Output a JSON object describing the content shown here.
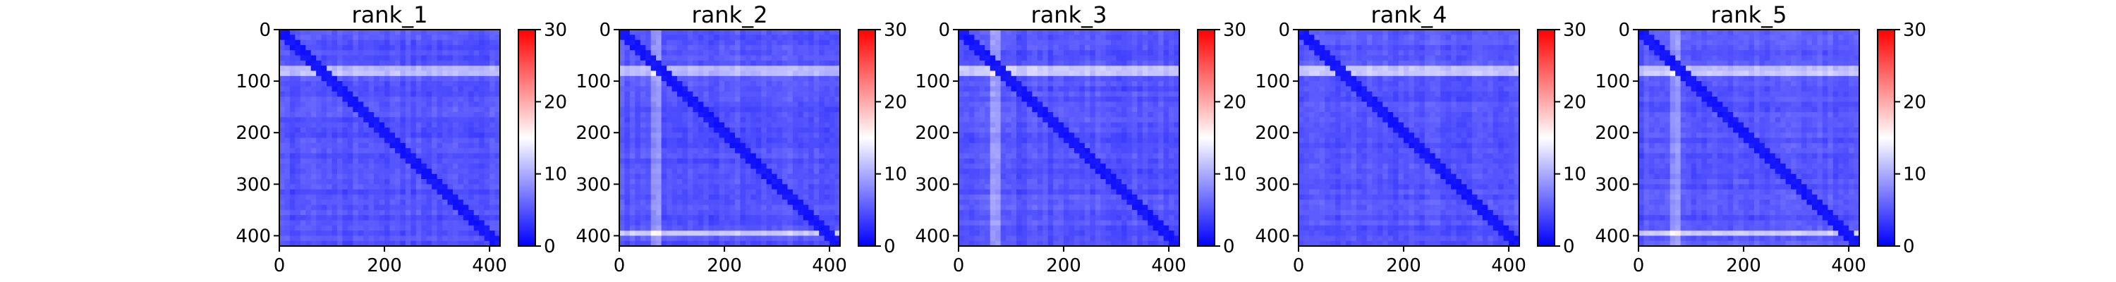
{
  "figure": {
    "background": "#ffffff"
  },
  "chart_data": [
    {
      "type": "heatmap",
      "title": "rank_1",
      "xlabel": "",
      "ylabel": "",
      "xlim": [
        0,
        420
      ],
      "ylim": [
        420,
        0
      ],
      "x_ticks": [
        "0",
        "200",
        "400"
      ],
      "y_ticks": [
        "0",
        "100",
        "200",
        "300",
        "400"
      ],
      "colorbar": {
        "range": [
          0,
          30
        ],
        "ticks": [
          "0",
          "10",
          "20",
          "30"
        ],
        "colormap": "bwr",
        "low_color": "#0000ff",
        "mid_color": "#ffffff",
        "high_color": "#ff0000"
      },
      "bright_rows": [
        78
      ],
      "bright_cols": [],
      "diagonal": "dark"
    },
    {
      "type": "heatmap",
      "title": "rank_2",
      "xlabel": "",
      "ylabel": "",
      "xlim": [
        0,
        420
      ],
      "ylim": [
        420,
        0
      ],
      "x_ticks": [
        "0",
        "200",
        "400"
      ],
      "y_ticks": [
        "0",
        "100",
        "200",
        "300",
        "400"
      ],
      "colorbar": {
        "range": [
          0,
          30
        ],
        "ticks": [
          "0",
          "10",
          "20",
          "30"
        ],
        "colormap": "bwr",
        "low_color": "#0000ff",
        "mid_color": "#ffffff",
        "high_color": "#ff0000"
      },
      "bright_rows": [
        78,
        395
      ],
      "bright_cols": [
        72
      ],
      "diagonal": "dark"
    },
    {
      "type": "heatmap",
      "title": "rank_3",
      "xlabel": "",
      "ylabel": "",
      "xlim": [
        0,
        420
      ],
      "ylim": [
        420,
        0
      ],
      "x_ticks": [
        "0",
        "200",
        "400"
      ],
      "y_ticks": [
        "0",
        "100",
        "200",
        "300",
        "400"
      ],
      "colorbar": {
        "range": [
          0,
          30
        ],
        "ticks": [
          "0",
          "10",
          "20",
          "30"
        ],
        "colormap": "bwr",
        "low_color": "#0000ff",
        "mid_color": "#ffffff",
        "high_color": "#ff0000"
      },
      "bright_rows": [
        78
      ],
      "bright_cols": [
        72
      ],
      "diagonal": "dark"
    },
    {
      "type": "heatmap",
      "title": "rank_4",
      "xlabel": "",
      "ylabel": "",
      "xlim": [
        0,
        420
      ],
      "ylim": [
        420,
        0
      ],
      "x_ticks": [
        "0",
        "200",
        "400"
      ],
      "y_ticks": [
        "0",
        "100",
        "200",
        "300",
        "400"
      ],
      "colorbar": {
        "range": [
          0,
          30
        ],
        "ticks": [
          "0",
          "10",
          "20",
          "30"
        ],
        "colormap": "bwr",
        "low_color": "#0000ff",
        "mid_color": "#ffffff",
        "high_color": "#ff0000"
      },
      "bright_rows": [
        78
      ],
      "bright_cols": [],
      "diagonal": "dark"
    },
    {
      "type": "heatmap",
      "title": "rank_5",
      "xlabel": "",
      "ylabel": "",
      "xlim": [
        0,
        420
      ],
      "ylim": [
        420,
        0
      ],
      "x_ticks": [
        "0",
        "200",
        "400"
      ],
      "y_ticks": [
        "0",
        "100",
        "200",
        "300",
        "400"
      ],
      "colorbar": {
        "range": [
          0,
          30
        ],
        "ticks": [
          "0",
          "10",
          "20",
          "30"
        ],
        "colormap": "bwr",
        "low_color": "#0000ff",
        "mid_color": "#ffffff",
        "high_color": "#ff0000"
      },
      "bright_rows": [
        78,
        395
      ],
      "bright_cols": [
        72
      ],
      "diagonal": "dark"
    }
  ]
}
